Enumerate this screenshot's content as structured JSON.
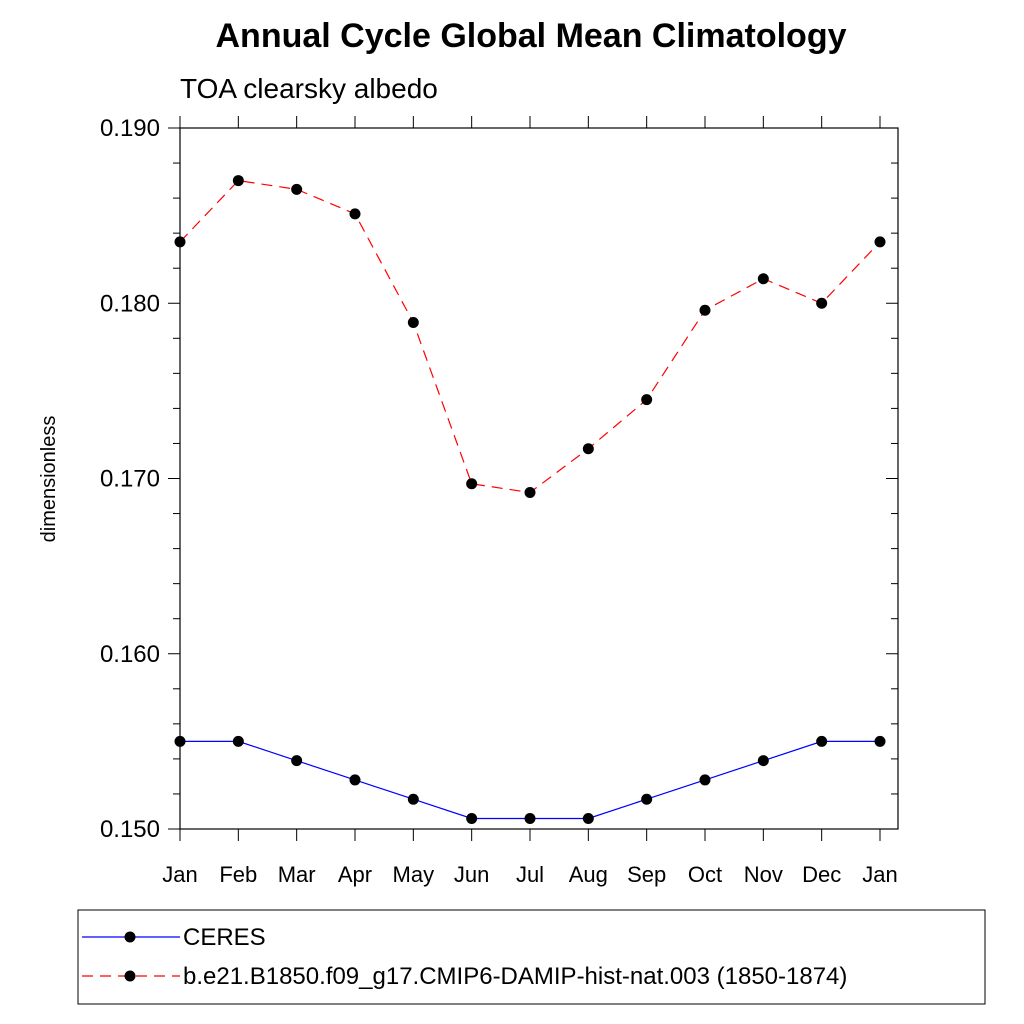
{
  "chart_data": {
    "type": "line",
    "title": "Annual Cycle Global Mean Climatology",
    "subtitle": "TOA clearsky albedo",
    "xlabel": "",
    "ylabel": "dimensionless",
    "categories": [
      "Jan",
      "Feb",
      "Mar",
      "Apr",
      "May",
      "Jun",
      "Jul",
      "Aug",
      "Sep",
      "Oct",
      "Nov",
      "Dec",
      "Jan"
    ],
    "ylim": [
      0.15,
      0.19
    ],
    "yticks": [
      "0.150",
      "0.160",
      "0.170",
      "0.180",
      "0.190"
    ],
    "grid": false,
    "legend_position": "bottom",
    "series": [
      {
        "name": "CERES",
        "color": "#0000ff",
        "line_style": "solid",
        "marker": "filled-circle",
        "values": [
          0.155,
          0.155,
          0.1539,
          0.1528,
          0.1517,
          0.1506,
          0.1506,
          0.1506,
          0.1517,
          0.1528,
          0.1539,
          0.155,
          0.155
        ]
      },
      {
        "name": "b.e21.B1850.f09_g17.CMIP6-DAMIP-hist-nat.003 (1850-1874)",
        "color": "#ff0000",
        "line_style": "dashed",
        "marker": "filled-circle",
        "values": [
          0.1835,
          0.187,
          0.1865,
          0.1851,
          0.1789,
          0.1697,
          0.1692,
          0.1717,
          0.1745,
          0.1796,
          0.1814,
          0.18,
          0.1835
        ]
      }
    ]
  }
}
